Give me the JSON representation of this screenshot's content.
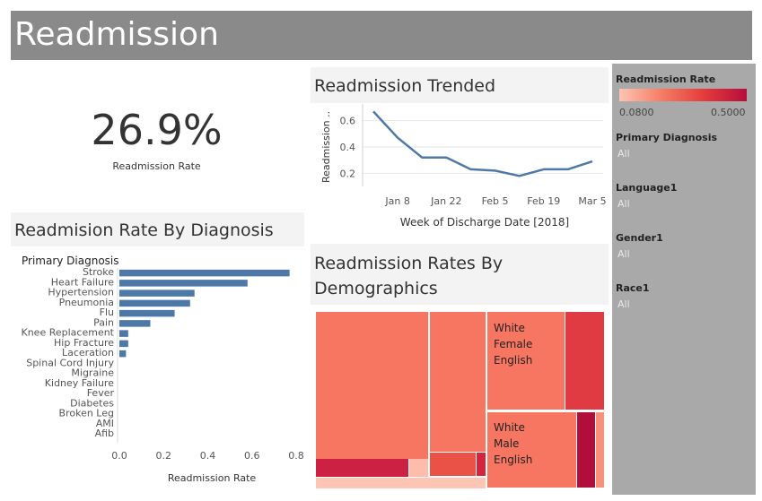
{
  "dashboard": {
    "title": "Readmission"
  },
  "kpi": {
    "value": "26.9%",
    "label": "Readmission Rate"
  },
  "trend": {
    "header": "Readmission Trended"
  },
  "diagnosis": {
    "header": "Readmision Rate By Diagnosis"
  },
  "demographics": {
    "header": "Readmission Rates By Demographics"
  },
  "filters": {
    "legend_title": "Readmission Rate",
    "legend_min": "0.0800",
    "legend_max": "0.5000",
    "items": [
      {
        "title": "Primary Diagnosis",
        "value": "All"
      },
      {
        "title": "Language1",
        "value": "All"
      },
      {
        "title": "Gender1",
        "value": "All"
      },
      {
        "title": "Race1",
        "value": "All"
      }
    ]
  },
  "colors": {
    "line": "#4e79a7",
    "bar": "#4e79a7",
    "header_bg": "#8a8a8a",
    "sidebar_bg": "#a9a9a9"
  },
  "chart_data": [
    {
      "type": "line",
      "x": [
        "2018-01-01",
        "2018-01-08",
        "2018-01-15",
        "2018-01-22",
        "2018-01-29",
        "2018-02-05",
        "2018-02-12",
        "2018-02-19",
        "2018-02-26",
        "2018-03-05"
      ],
      "values": [
        0.67,
        0.47,
        0.32,
        0.32,
        0.23,
        0.22,
        0.18,
        0.23,
        0.23,
        0.29
      ],
      "xticks": [
        "Jan 8",
        "Jan 22",
        "Feb 5",
        "Feb 19",
        "Mar 5"
      ],
      "xlabel": "Week of Discharge Date [2018]",
      "ylabel": "Readmission ..",
      "yticks": [
        "0.2",
        "0.4",
        "0.6"
      ],
      "ylim": [
        0.1,
        0.7
      ]
    },
    {
      "type": "bar",
      "categories_title": "Primary Diagnosis",
      "categories": [
        "Stroke",
        "Heart Failure",
        "Hypertension",
        "Pneumonia",
        "Flu",
        "Pain",
        "Knee Replacement",
        "Hip Fracture",
        "Laceration",
        "Spinal Cord Injury",
        "Migraine",
        "Kidney Failure",
        "Fever",
        "Diabetes",
        "Broken Leg",
        "AMI",
        "Afib"
      ],
      "values": [
        0.77,
        0.58,
        0.34,
        0.32,
        0.25,
        0.14,
        0.04,
        0.04,
        0.03,
        0,
        0,
        0,
        0,
        0,
        0,
        0,
        0
      ],
      "xlabel": "Readmission Rate",
      "xticks": [
        "0.0",
        "0.2",
        "0.4",
        "0.6",
        "0.8"
      ],
      "xlim": [
        0,
        0.8
      ]
    },
    {
      "type": "treemap",
      "cell_labels": [
        [
          "White",
          "Female",
          "English"
        ],
        [
          "White",
          "Male",
          "English"
        ]
      ]
    }
  ]
}
